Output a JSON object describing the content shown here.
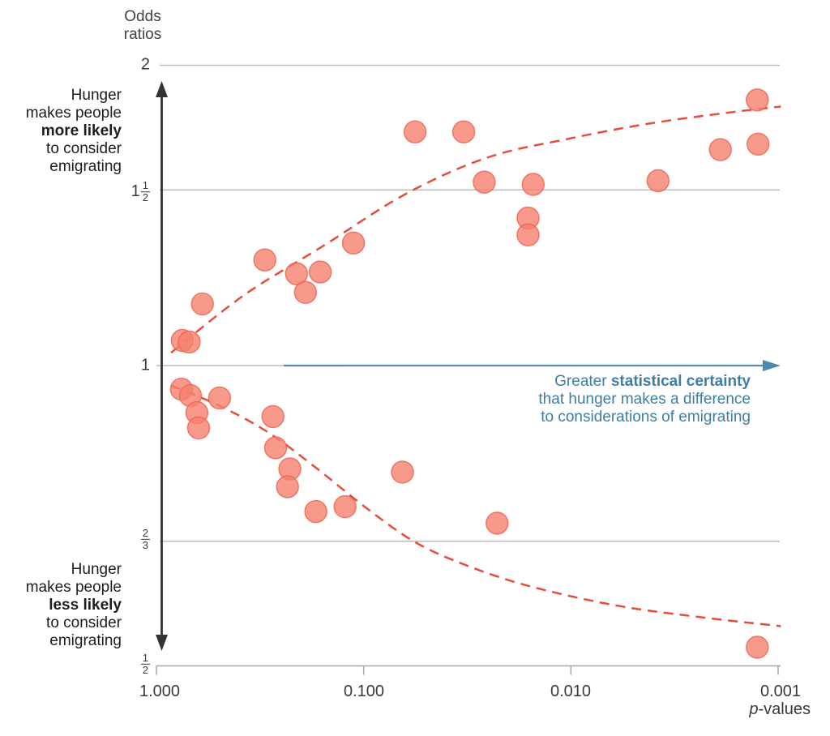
{
  "axis_title": {
    "line1": "Odds",
    "line2": "ratios"
  },
  "y_tick_labels": {
    "two": "2",
    "one_half_whole": "1",
    "one_half_num": "1",
    "one_half_den": "2",
    "one": "1",
    "two_thirds_num": "2",
    "two_thirds_den": "3",
    "half_num": "1",
    "half_den": "2"
  },
  "x_tick_labels": [
    "1.000",
    "0.100",
    "0.010",
    "0.001"
  ],
  "x_axis_name": {
    "italic": "p",
    "rest": "-values"
  },
  "annotations": {
    "more_likely": {
      "l1": "Hunger",
      "l2": "makes people",
      "l3": "more likely",
      "l4": "to consider",
      "l5": "emigrating"
    },
    "less_likely": {
      "l1": "Hunger",
      "l2": "makes people",
      "l3": "less likely",
      "l4": "to consider",
      "l5": "emigrating"
    },
    "certainty": {
      "l1_pre": "Greater ",
      "l1_bold": "statistical certainty",
      "l2": "that hunger makes a difference",
      "l3": "to considerations of emigrating"
    }
  },
  "colors": {
    "point_fill": "#f5806e",
    "point_stroke": "#ed6350",
    "trend_dash": "#e74c3a",
    "grid": "#bcbcbc",
    "baseline": "#a6a6a6",
    "black_arrow": "#333333",
    "blue_arrow": "#4d89ad",
    "blue_text": "#3e7ea5"
  },
  "chart_data": {
    "type": "scatter",
    "xlabel": "p-values",
    "ylabel": "Odds ratios",
    "x_axis": {
      "scale": "log",
      "reversed": true,
      "range": [
        1.0,
        0.001
      ],
      "ticks": [
        1.0,
        0.1,
        0.01,
        0.001
      ],
      "tick_labels": [
        "1.000",
        "0.100",
        "0.010",
        "0.001"
      ]
    },
    "y_axis": {
      "scale": "log",
      "range": [
        0.5,
        2
      ],
      "ticks": [
        2,
        1.5,
        1,
        0.667,
        0.5
      ],
      "tick_labels": [
        "2",
        "1 1/2",
        "1",
        "2/3",
        "1/2"
      ],
      "gridlines": [
        2,
        1.5,
        0.667
      ],
      "reference_line": 1,
      "baseline": 0.5
    },
    "legend": "none",
    "series": [
      {
        "name": "points-above-1",
        "type": "scatter",
        "points_p_or": [
          [
            0.75,
            1.06
          ],
          [
            0.695,
            1.056
          ],
          [
            0.6,
            1.153
          ],
          [
            0.3,
            1.276
          ],
          [
            0.211,
            1.236
          ],
          [
            0.191,
            1.184
          ],
          [
            0.162,
            1.241
          ],
          [
            0.112,
            1.327
          ],
          [
            0.0565,
            1.715
          ],
          [
            0.0329,
            1.715
          ],
          [
            0.0262,
            1.527
          ],
          [
            0.0152,
            1.519
          ],
          [
            0.0161,
            1.406
          ],
          [
            0.0161,
            1.352
          ],
          [
            0.0038,
            1.532
          ],
          [
            0.0019,
            1.646
          ],
          [
            0.00125,
            1.667
          ],
          [
            0.00126,
            1.846
          ]
        ]
      },
      {
        "name": "points-below-1",
        "type": "scatter",
        "points_p_or": [
          [
            0.757,
            0.947
          ],
          [
            0.685,
            0.933
          ],
          [
            0.496,
            0.928
          ],
          [
            0.638,
            0.897
          ],
          [
            0.626,
            0.866
          ],
          [
            0.274,
            0.889
          ],
          [
            0.266,
            0.827
          ],
          [
            0.227,
            0.788
          ],
          [
            0.233,
            0.756
          ],
          [
            0.17,
            0.714
          ],
          [
            0.123,
            0.722
          ],
          [
            0.065,
            0.782
          ],
          [
            0.0227,
            0.695
          ],
          [
            0.00126,
            0.522
          ]
        ]
      },
      {
        "name": "trend-upper",
        "type": "line",
        "style": "dashed",
        "points_p_or": [
          [
            0.85,
            1.03
          ],
          [
            0.381,
            1.175
          ],
          [
            0.155,
            1.32
          ],
          [
            0.063,
            1.485
          ],
          [
            0.0256,
            1.615
          ],
          [
            0.0104,
            1.687
          ],
          [
            0.0042,
            1.748
          ],
          [
            0.0017,
            1.794
          ],
          [
            0.00097,
            1.818
          ]
        ]
      },
      {
        "name": "trend-lower",
        "type": "line",
        "style": "dashed",
        "points_p_or": [
          [
            0.85,
            0.955
          ],
          [
            0.5,
            0.912
          ],
          [
            0.291,
            0.858
          ],
          [
            0.17,
            0.79
          ],
          [
            0.099,
            0.722
          ],
          [
            0.0576,
            0.667
          ],
          [
            0.0335,
            0.633
          ],
          [
            0.0163,
            0.602
          ],
          [
            0.0061,
            0.575
          ],
          [
            0.00246,
            0.56
          ],
          [
            0.00097,
            0.548
          ]
        ]
      }
    ]
  }
}
